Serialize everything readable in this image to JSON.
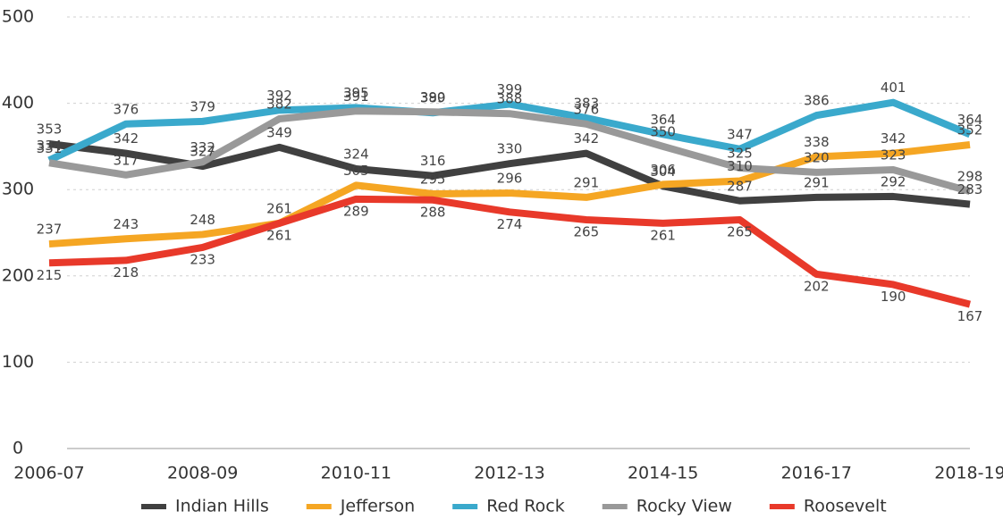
{
  "chart_data": {
    "type": "line",
    "categories": [
      "2006-07",
      null,
      "2008-09",
      null,
      "2010-11",
      null,
      "2012-13",
      null,
      "2014-15",
      null,
      "2016-17",
      null,
      "2018-19"
    ],
    "series": [
      {
        "name": "Indian Hills",
        "color": "#404040",
        "values": [
          353,
          342,
          327,
          349,
          324,
          316,
          330,
          342,
          304,
          287,
          291,
          292,
          283
        ]
      },
      {
        "name": "Jefferson",
        "color": "#f5a623",
        "values": [
          237,
          243,
          248,
          261,
          305,
          295,
          296,
          291,
          306,
          310,
          338,
          342,
          352
        ]
      },
      {
        "name": "Red Rock",
        "color": "#3aa9cc",
        "values": [
          334,
          376,
          379,
          392,
          395,
          389,
          399,
          383,
          364,
          347,
          386,
          401,
          364
        ]
      },
      {
        "name": "Rocky View",
        "color": "#999999",
        "values": [
          331,
          317,
          332,
          382,
          391,
          390,
          388,
          376,
          350,
          325,
          320,
          323,
          298
        ]
      },
      {
        "name": "Roosevelt",
        "color": "#e8392a",
        "values": [
          215,
          218,
          233,
          261,
          289,
          288,
          274,
          265,
          261,
          265,
          202,
          190,
          167
        ]
      }
    ],
    "ylim": [
      0,
      500
    ],
    "yticks": [
      0,
      100,
      200,
      300,
      400,
      500
    ],
    "grid": true,
    "legend": "bottom"
  }
}
